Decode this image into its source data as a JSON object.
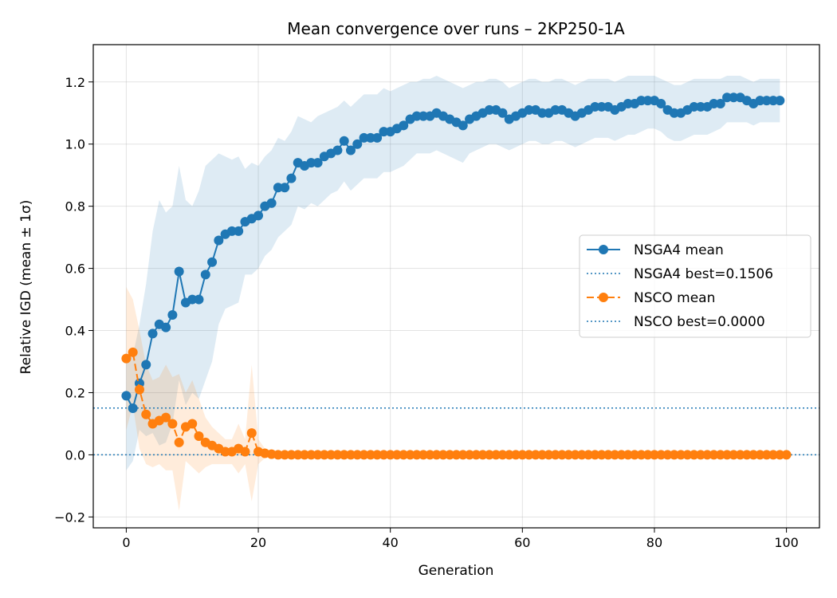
{
  "chart_data": {
    "type": "line",
    "title": "Mean convergence over runs – 2KP250-1A",
    "xlabel": "Generation",
    "ylabel": "Relative IGD (mean ± 1σ)",
    "xlim": [
      -5,
      105
    ],
    "ylim": [
      -0.235,
      1.32
    ],
    "xticks": [
      0,
      20,
      40,
      60,
      80,
      100
    ],
    "yticks": [
      -0.2,
      0.0,
      0.2,
      0.4,
      0.6,
      0.8,
      1.0,
      1.2
    ],
    "ytick_labels": [
      "−0.2",
      "0.0",
      "0.2",
      "0.4",
      "0.6",
      "0.8",
      "1.0",
      "1.2"
    ],
    "grid": true,
    "legend_position": "center-right",
    "series": [
      {
        "name": "NSGA4 mean",
        "color": "#1f77b4",
        "line_style": "solid",
        "x_start": 0,
        "mean": [
          0.19,
          0.15,
          0.23,
          0.29,
          0.39,
          0.42,
          0.41,
          0.45,
          0.59,
          0.49,
          0.5,
          0.5,
          0.58,
          0.62,
          0.69,
          0.71,
          0.72,
          0.72,
          0.75,
          0.76,
          0.77,
          0.8,
          0.81,
          0.86,
          0.86,
          0.89,
          0.94,
          0.93,
          0.94,
          0.94,
          0.96,
          0.97,
          0.98,
          1.01,
          0.98,
          1.0,
          1.02,
          1.02,
          1.02,
          1.04,
          1.04,
          1.05,
          1.06,
          1.08,
          1.09,
          1.09,
          1.09,
          1.1,
          1.09,
          1.08,
          1.07,
          1.06,
          1.08,
          1.09,
          1.1,
          1.11,
          1.11,
          1.1,
          1.08,
          1.09,
          1.1,
          1.11,
          1.11,
          1.1,
          1.1,
          1.11,
          1.11,
          1.1,
          1.09,
          1.1,
          1.11,
          1.12,
          1.12,
          1.12,
          1.11,
          1.12,
          1.13,
          1.13,
          1.14,
          1.14,
          1.14,
          1.13,
          1.11,
          1.1,
          1.1,
          1.11,
          1.12,
          1.12,
          1.12,
          1.13,
          1.13,
          1.15,
          1.15,
          1.15,
          1.14,
          1.13,
          1.14,
          1.14,
          1.14,
          1.14
        ],
        "upper": [
          0.3,
          0.32,
          0.42,
          0.55,
          0.72,
          0.82,
          0.78,
          0.8,
          0.93,
          0.82,
          0.8,
          0.85,
          0.93,
          0.95,
          0.97,
          0.96,
          0.95,
          0.96,
          0.92,
          0.94,
          0.93,
          0.96,
          0.98,
          1.02,
          1.01,
          1.04,
          1.09,
          1.08,
          1.07,
          1.09,
          1.1,
          1.11,
          1.12,
          1.14,
          1.12,
          1.14,
          1.16,
          1.16,
          1.16,
          1.18,
          1.17,
          1.18,
          1.19,
          1.2,
          1.2,
          1.21,
          1.21,
          1.22,
          1.21,
          1.2,
          1.19,
          1.18,
          1.19,
          1.2,
          1.2,
          1.21,
          1.21,
          1.2,
          1.18,
          1.19,
          1.2,
          1.21,
          1.21,
          1.2,
          1.2,
          1.21,
          1.21,
          1.2,
          1.19,
          1.2,
          1.21,
          1.21,
          1.21,
          1.21,
          1.2,
          1.21,
          1.22,
          1.22,
          1.22,
          1.22,
          1.22,
          1.21,
          1.2,
          1.19,
          1.19,
          1.2,
          1.21,
          1.21,
          1.21,
          1.21,
          1.21,
          1.22,
          1.22,
          1.22,
          1.21,
          1.2,
          1.21,
          1.21,
          1.21,
          1.21
        ],
        "lower": [
          -0.05,
          -0.02,
          0.08,
          0.06,
          0.07,
          0.03,
          0.04,
          0.1,
          0.24,
          0.16,
          0.2,
          0.18,
          0.24,
          0.3,
          0.42,
          0.47,
          0.48,
          0.49,
          0.58,
          0.58,
          0.6,
          0.64,
          0.66,
          0.7,
          0.72,
          0.74,
          0.8,
          0.79,
          0.81,
          0.8,
          0.82,
          0.84,
          0.85,
          0.88,
          0.85,
          0.87,
          0.89,
          0.89,
          0.89,
          0.91,
          0.91,
          0.92,
          0.93,
          0.95,
          0.97,
          0.97,
          0.97,
          0.98,
          0.97,
          0.96,
          0.95,
          0.94,
          0.97,
          0.98,
          0.99,
          1.0,
          1.0,
          0.99,
          0.98,
          0.99,
          1.0,
          1.01,
          1.01,
          1.0,
          1.0,
          1.01,
          1.01,
          1.0,
          0.99,
          1.0,
          1.01,
          1.02,
          1.02,
          1.02,
          1.01,
          1.02,
          1.03,
          1.03,
          1.04,
          1.05,
          1.05,
          1.04,
          1.02,
          1.01,
          1.01,
          1.02,
          1.03,
          1.03,
          1.03,
          1.04,
          1.05,
          1.07,
          1.07,
          1.07,
          1.07,
          1.06,
          1.07,
          1.07,
          1.07,
          1.07
        ]
      },
      {
        "name": "NSGA4 best=0.1506",
        "color": "#1f77b4",
        "line_style": "dotted",
        "value": 0.1506
      },
      {
        "name": "NSCO mean",
        "color": "#ff7f0e",
        "line_style": "dashed",
        "x_start": 0,
        "mean": [
          0.31,
          0.33,
          0.21,
          0.13,
          0.1,
          0.11,
          0.12,
          0.1,
          0.04,
          0.09,
          0.1,
          0.06,
          0.04,
          0.03,
          0.02,
          0.01,
          0.01,
          0.02,
          0.01,
          0.07,
          0.01,
          0.005,
          0.002,
          0,
          0,
          0,
          0,
          0,
          0,
          0,
          0,
          0,
          0,
          0,
          0,
          0,
          0,
          0,
          0,
          0,
          0,
          0,
          0,
          0,
          0,
          0,
          0,
          0,
          0,
          0,
          0,
          0,
          0,
          0,
          0,
          0,
          0,
          0,
          0,
          0,
          0,
          0,
          0,
          0,
          0,
          0,
          0,
          0,
          0,
          0,
          0,
          0,
          0,
          0,
          0,
          0,
          0,
          0,
          0,
          0,
          0,
          0,
          0,
          0,
          0,
          0,
          0,
          0,
          0,
          0,
          0,
          0,
          0,
          0,
          0,
          0,
          0,
          0,
          0,
          0,
          0
        ],
        "upper": [
          0.54,
          0.5,
          0.4,
          0.29,
          0.24,
          0.25,
          0.29,
          0.25,
          0.26,
          0.2,
          0.24,
          0.18,
          0.12,
          0.09,
          0.07,
          0.05,
          0.05,
          0.1,
          0.05,
          0.29,
          0.05,
          0.02,
          0.01,
          0,
          0,
          0,
          0,
          0,
          0,
          0,
          0,
          0,
          0,
          0,
          0,
          0,
          0,
          0,
          0,
          0,
          0,
          0,
          0,
          0,
          0,
          0,
          0,
          0,
          0,
          0,
          0,
          0,
          0,
          0,
          0,
          0,
          0,
          0,
          0,
          0,
          0,
          0,
          0,
          0,
          0,
          0,
          0,
          0,
          0,
          0,
          0,
          0,
          0,
          0,
          0,
          0,
          0,
          0,
          0,
          0,
          0,
          0,
          0,
          0,
          0,
          0,
          0,
          0,
          0,
          0,
          0,
          0,
          0,
          0,
          0,
          0,
          0,
          0,
          0,
          0,
          0
        ],
        "lower": [
          0.08,
          0.16,
          0.02,
          -0.03,
          -0.04,
          -0.03,
          -0.05,
          -0.05,
          -0.18,
          -0.02,
          -0.04,
          -0.06,
          -0.04,
          -0.03,
          -0.03,
          -0.03,
          -0.03,
          -0.06,
          -0.03,
          -0.15,
          -0.03,
          -0.01,
          -0.006,
          0,
          0,
          0,
          0,
          0,
          0,
          0,
          0,
          0,
          0,
          0,
          0,
          0,
          0,
          0,
          0,
          0,
          0,
          0,
          0,
          0,
          0,
          0,
          0,
          0,
          0,
          0,
          0,
          0,
          0,
          0,
          0,
          0,
          0,
          0,
          0,
          0,
          0,
          0,
          0,
          0,
          0,
          0,
          0,
          0,
          0,
          0,
          0,
          0,
          0,
          0,
          0,
          0,
          0,
          0,
          0,
          0,
          0,
          0,
          0,
          0,
          0,
          0,
          0,
          0,
          0,
          0,
          0,
          0,
          0,
          0,
          0,
          0,
          0,
          0,
          0,
          0,
          0
        ]
      },
      {
        "name": "NSCO best=0.0000",
        "color": "#1f77b4",
        "line_style": "dotted",
        "value": 0.0
      }
    ]
  }
}
